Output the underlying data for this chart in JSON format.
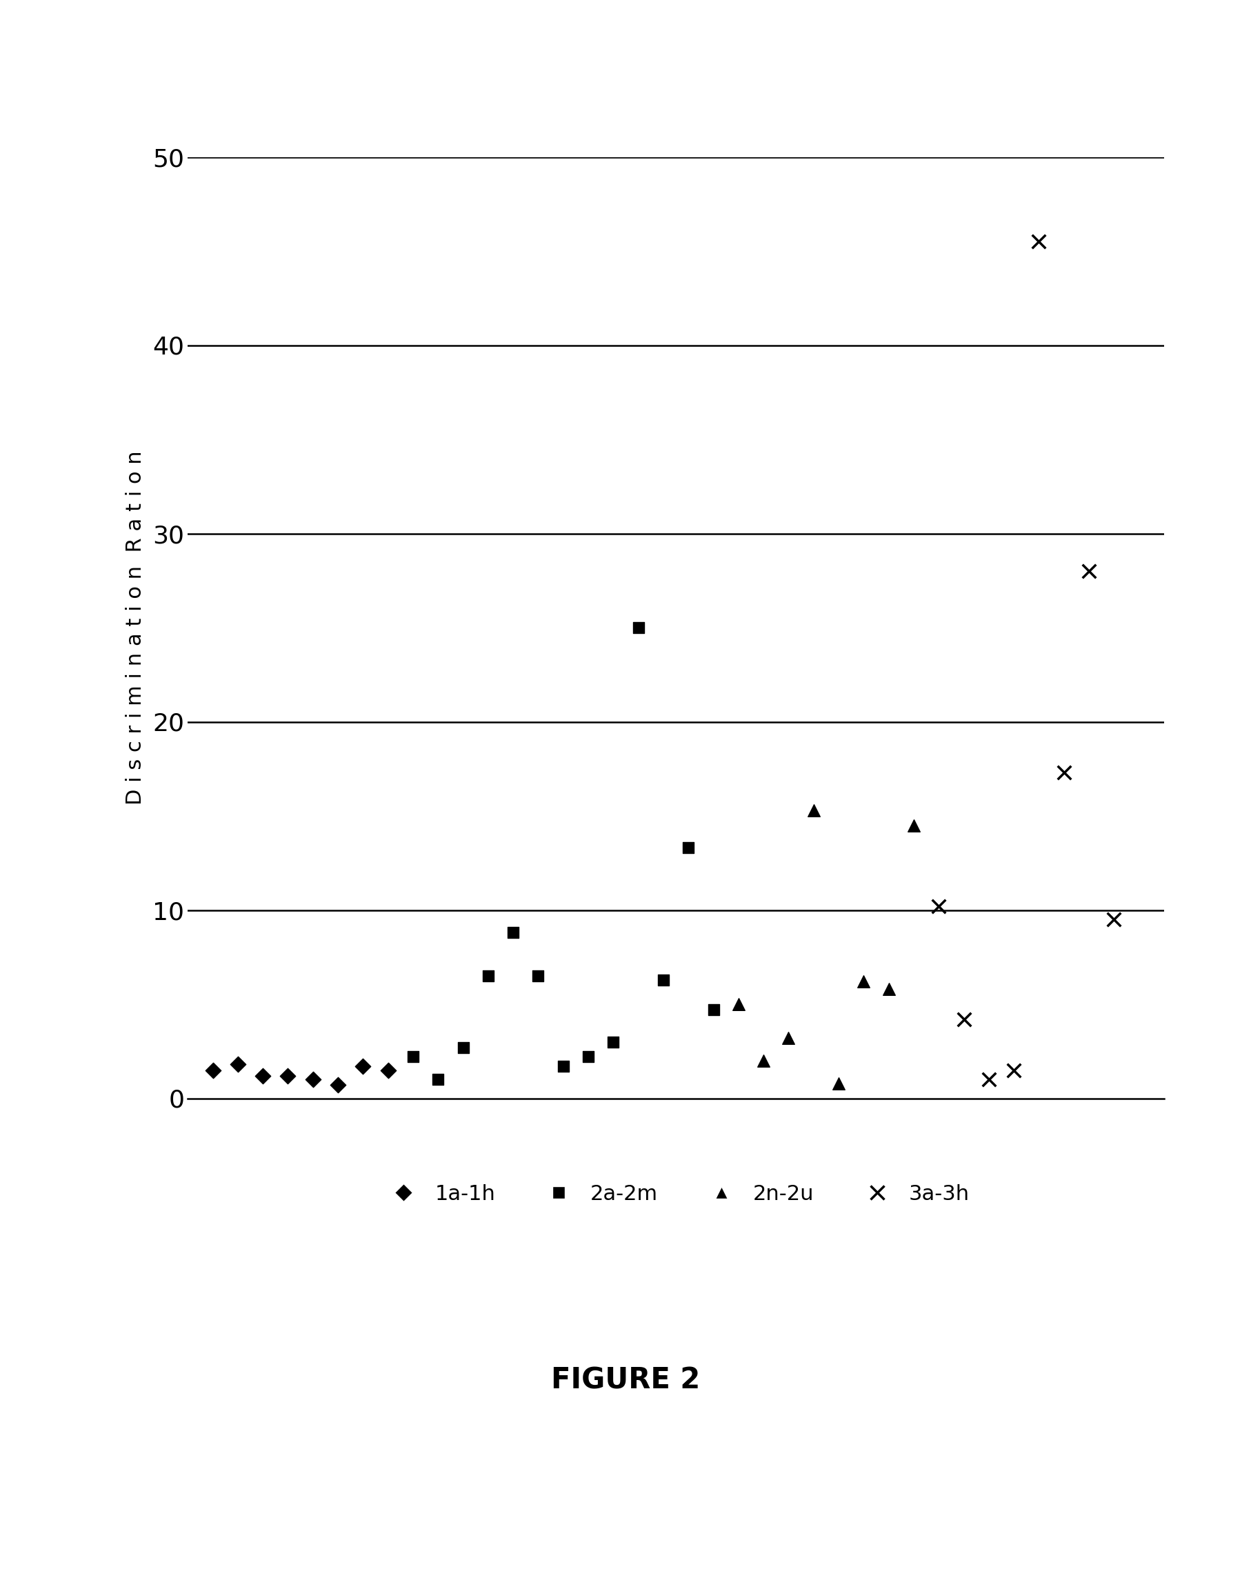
{
  "series_1a1h": {
    "label": "1a-1h",
    "marker": "D",
    "color": "#000000",
    "x": [
      1,
      2,
      3,
      4,
      5,
      6,
      7,
      8
    ],
    "y": [
      1.5,
      1.8,
      1.2,
      1.2,
      1.0,
      0.7,
      1.7,
      1.5
    ]
  },
  "series_2a2m": {
    "label": "2a-2m",
    "marker": "s",
    "color": "#000000",
    "x": [
      9,
      10,
      11,
      12,
      13,
      14,
      15,
      16,
      17,
      18,
      19,
      20,
      21
    ],
    "y": [
      2.2,
      1.0,
      2.7,
      6.5,
      8.8,
      6.5,
      1.7,
      2.2,
      3.0,
      25.0,
      6.3,
      13.3,
      4.7
    ]
  },
  "series_2n2u": {
    "label": "2n-2u",
    "marker": "^",
    "color": "#000000",
    "x": [
      22,
      23,
      24,
      25,
      26,
      27,
      28,
      29
    ],
    "y": [
      5.0,
      2.0,
      3.2,
      15.3,
      0.8,
      6.2,
      5.8,
      14.5
    ]
  },
  "series_3a3h": {
    "label": "3a-3h",
    "marker": "x",
    "color": "#000000",
    "x": [
      30,
      31,
      32,
      33,
      34,
      35,
      36,
      37
    ],
    "y": [
      10.2,
      4.2,
      1.0,
      1.5,
      45.5,
      17.3,
      28.0,
      9.5
    ]
  },
  "ylabel": "D i s c r i m i n a t i o n  R a t i o n",
  "ylim": [
    0,
    50
  ],
  "yticks": [
    0,
    10,
    20,
    30,
    40,
    50
  ],
  "title": "FIGURE 2",
  "background_color": "#ffffff",
  "grid_color": "#000000",
  "grid_lines_y": [
    10,
    20,
    30,
    40,
    50
  ]
}
